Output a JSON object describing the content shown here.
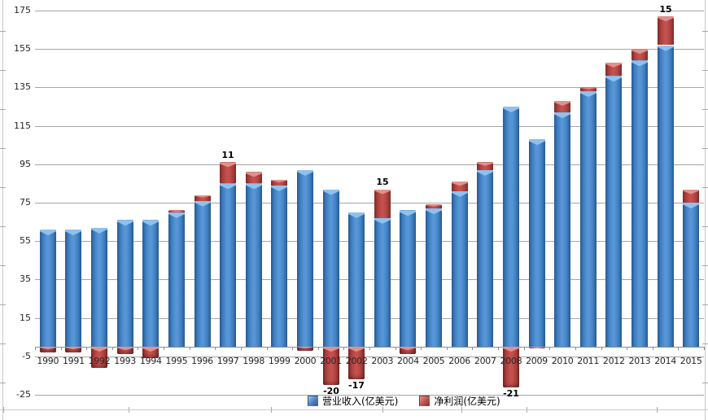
{
  "chart_data": {
    "type": "bar",
    "stacked": true,
    "title": "",
    "xlabel": "",
    "ylabel": "",
    "categories": [
      "1990",
      "1991",
      "1992",
      "1993",
      "1994",
      "1995",
      "1996",
      "1997",
      "1998",
      "1999",
      "2000",
      "2001",
      "2002",
      "2003",
      "2004",
      "2005",
      "2006",
      "2007",
      "2008",
      "2009",
      "2010",
      "2011",
      "2012",
      "2013",
      "2014",
      "2015"
    ],
    "series": [
      {
        "name": "营业收入(亿美元)",
        "color": "#4f81bd",
        "values": [
          61,
          61,
          62,
          66,
          66,
          70,
          76,
          85,
          85,
          84,
          92,
          82,
          70,
          67,
          71,
          72,
          81,
          92,
          125,
          108,
          122,
          133,
          141,
          149,
          157,
          75
        ]
      },
      {
        "name": "净利润(亿美元)",
        "color": "#c0504d",
        "values": [
          -3,
          -3,
          -11,
          -4,
          -6,
          1,
          3,
          11,
          6,
          3,
          -2,
          -20,
          -17,
          15,
          -4,
          2,
          5,
          4,
          -21,
          -1,
          6,
          2,
          7,
          6,
          15,
          7
        ]
      }
    ],
    "data_labels": [
      "",
      "",
      "",
      "",
      "",
      "",
      "",
      "11",
      "",
      "",
      "",
      "-20",
      "-17",
      "15",
      "",
      "",
      "",
      "",
      "-21",
      "",
      "",
      "",
      "",
      "",
      "15",
      ""
    ],
    "y_axis": {
      "min": -25,
      "max": 175,
      "step": 20,
      "ticks": [
        175,
        155,
        135,
        115,
        95,
        75,
        55,
        35,
        15,
        -5,
        -25
      ]
    },
    "grid": true,
    "legend_position": "bottom",
    "gridline_color": "#a6a6a6",
    "axis_text_color": "#262626"
  }
}
